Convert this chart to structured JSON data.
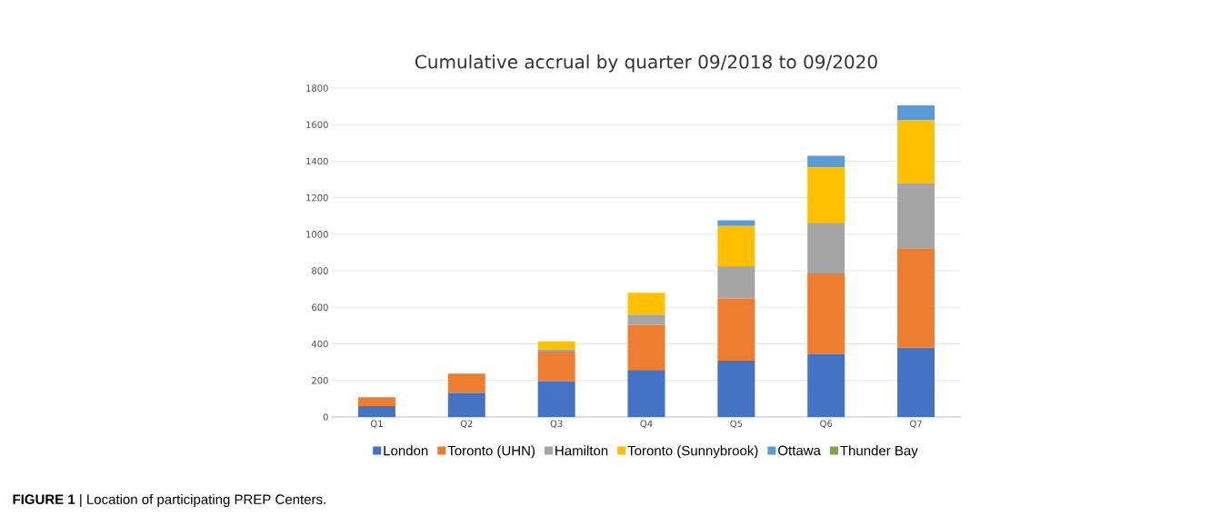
{
  "chart_data": {
    "type": "bar",
    "stacked": true,
    "title": "Cumulative accrual by quarter 09/2018 to 09/2020",
    "categories": [
      "Q1",
      "Q2",
      "Q3",
      "Q4",
      "Q5",
      "Q6",
      "Q7"
    ],
    "series": [
      {
        "name": "London",
        "color": "#4472c4",
        "values": [
          60,
          132,
          195,
          257,
          308,
          344,
          379
        ]
      },
      {
        "name": "Toronto (UHN)",
        "color": "#ed7d31",
        "values": [
          48,
          105,
          163,
          248,
          341,
          442,
          545
        ]
      },
      {
        "name": "Hamilton",
        "color": "#a5a5a5",
        "values": [
          0,
          0,
          11,
          55,
          176,
          277,
          357
        ]
      },
      {
        "name": "Toronto (Sunnybrook)",
        "color": "#ffc000",
        "values": [
          0,
          0,
          45,
          120,
          220,
          303,
          343
        ]
      },
      {
        "name": "Ottawa",
        "color": "#5b9bd5",
        "values": [
          0,
          0,
          0,
          0,
          31,
          63,
          81
        ]
      },
      {
        "name": "Thunder Bay",
        "color": "#70ad47",
        "values": [
          0,
          0,
          0,
          0,
          0,
          0,
          0
        ]
      }
    ],
    "ylim": [
      0,
      1800
    ],
    "yticks": [
      0,
      200,
      400,
      600,
      800,
      1000,
      1200,
      1400,
      1600,
      1800
    ],
    "grid": "y",
    "legend": "bottom",
    "annotations": [
      "**FIGURE 1** | Location of participating PREP Centers."
    ]
  }
}
